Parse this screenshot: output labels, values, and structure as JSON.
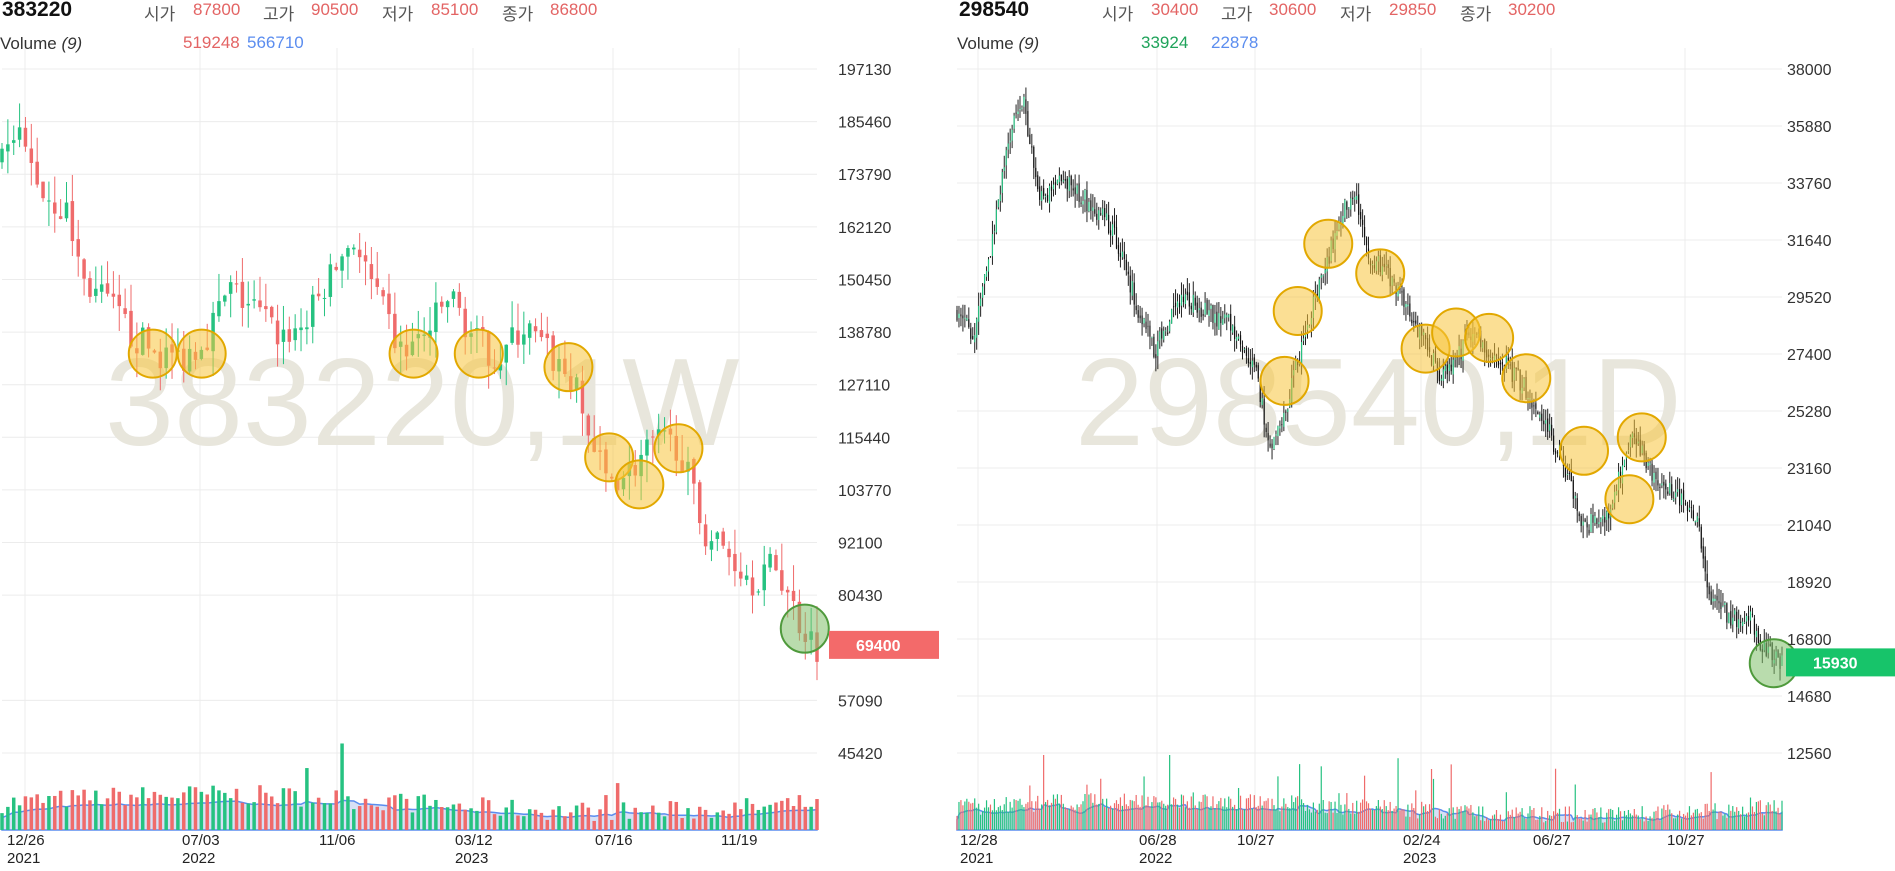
{
  "panels": [
    {
      "symbol": "383220",
      "ohlc": [
        {
          "key": "시가",
          "value": "87800"
        },
        {
          "key": "고가",
          "value": "90500"
        },
        {
          "key": "저가",
          "value": "85100"
        },
        {
          "key": "종가",
          "value": "86800"
        }
      ],
      "volume_label": "Volume",
      "volume_param": "(9)",
      "volume_values": [
        "519248",
        "566710"
      ],
      "last_price": "69400",
      "watermark": "383220,1W"
    },
    {
      "symbol": "298540",
      "ohlc": [
        {
          "key": "시가",
          "value": "30400"
        },
        {
          "key": "고가",
          "value": "30600"
        },
        {
          "key": "저가",
          "value": "29850"
        },
        {
          "key": "종가",
          "value": "30200"
        }
      ],
      "volume_label": "Volume",
      "volume_param": "(9)",
      "volume_values": [
        "33924",
        "22878"
      ],
      "last_price": "15930",
      "watermark": "298540,1D"
    }
  ],
  "colors": {
    "up": "#26c281",
    "down": "#ef6b6b",
    "ohlc_value": "#e36464",
    "vol_up_text": "#e36464",
    "vol_down_text": "#5b8def",
    "vol_up_text_right": "#1fa35a",
    "vol_ma_line": "#5b8def",
    "vol_ma_fill": "#c9d6f3",
    "highlight_yellow": "#f7c53c",
    "highlight_green": "#7fbf6a",
    "last_price_red": "#f36a6a",
    "last_price_green": "#17c46a",
    "grid": "#ececec"
  },
  "chart_data": [
    {
      "type": "candlestick",
      "interval": "1W",
      "symbol": "383220",
      "title": "383220",
      "y_ticks": [
        197130,
        185460,
        173790,
        162120,
        150450,
        138780,
        127110,
        115440,
        103770,
        92100,
        80430,
        57090,
        45420
      ],
      "ylim": [
        45420,
        197130
      ],
      "x_ticks": [
        {
          "label": "12/26",
          "year": "2021"
        },
        {
          "label": "07/03",
          "year": "2022"
        },
        {
          "label": "11/06",
          "year": ""
        },
        {
          "label": "03/12",
          "year": "2023"
        },
        {
          "label": "07/16",
          "year": ""
        },
        {
          "label": "11/19",
          "year": ""
        }
      ],
      "close_path": [
        {
          "x": 0.0,
          "y": 176000
        },
        {
          "x": 0.02,
          "y": 182000
        },
        {
          "x": 0.05,
          "y": 170000
        },
        {
          "x": 0.08,
          "y": 165000
        },
        {
          "x": 0.1,
          "y": 150000
        },
        {
          "x": 0.13,
          "y": 145000
        },
        {
          "x": 0.16,
          "y": 138000
        },
        {
          "x": 0.19,
          "y": 134000
        },
        {
          "x": 0.22,
          "y": 133000
        },
        {
          "x": 0.25,
          "y": 138000
        },
        {
          "x": 0.28,
          "y": 148000
        },
        {
          "x": 0.31,
          "y": 144000
        },
        {
          "x": 0.34,
          "y": 138000
        },
        {
          "x": 0.37,
          "y": 140000
        },
        {
          "x": 0.4,
          "y": 150000
        },
        {
          "x": 0.43,
          "y": 160000
        },
        {
          "x": 0.46,
          "y": 146000
        },
        {
          "x": 0.49,
          "y": 134000
        },
        {
          "x": 0.52,
          "y": 138000
        },
        {
          "x": 0.55,
          "y": 147000
        },
        {
          "x": 0.58,
          "y": 137000
        },
        {
          "x": 0.61,
          "y": 133000
        },
        {
          "x": 0.64,
          "y": 140000
        },
        {
          "x": 0.67,
          "y": 134000
        },
        {
          "x": 0.7,
          "y": 128000
        },
        {
          "x": 0.72,
          "y": 116000
        },
        {
          "x": 0.74,
          "y": 106000
        },
        {
          "x": 0.77,
          "y": 108000
        },
        {
          "x": 0.8,
          "y": 114000
        },
        {
          "x": 0.83,
          "y": 114000
        },
        {
          "x": 0.86,
          "y": 95000
        },
        {
          "x": 0.89,
          "y": 90000
        },
        {
          "x": 0.92,
          "y": 84000
        },
        {
          "x": 0.95,
          "y": 87000
        },
        {
          "x": 0.98,
          "y": 74000
        },
        {
          "x": 1.0,
          "y": 69400
        }
      ],
      "highlights": [
        {
          "x": 0.185,
          "y": 134000,
          "color": "yellow"
        },
        {
          "x": 0.245,
          "y": 134000,
          "color": "yellow"
        },
        {
          "x": 0.505,
          "y": 134000,
          "color": "yellow"
        },
        {
          "x": 0.585,
          "y": 134000,
          "color": "yellow"
        },
        {
          "x": 0.695,
          "y": 131000,
          "color": "yellow"
        },
        {
          "x": 0.745,
          "y": 111000,
          "color": "yellow"
        },
        {
          "x": 0.782,
          "y": 105000,
          "color": "yellow"
        },
        {
          "x": 0.83,
          "y": 113000,
          "color": "yellow"
        },
        {
          "x": 0.985,
          "y": 73000,
          "color": "green"
        }
      ]
    },
    {
      "type": "candlestick",
      "interval": "1D",
      "symbol": "298540",
      "title": "298540",
      "y_ticks": [
        38000,
        35880,
        33760,
        31640,
        29520,
        27400,
        25280,
        23160,
        21040,
        18920,
        16800,
        14680,
        12560
      ],
      "ylim": [
        12560,
        38000
      ],
      "x_ticks": [
        {
          "label": "12/28",
          "year": "2021"
        },
        {
          "label": "06/28",
          "year": "2022"
        },
        {
          "label": "10/27",
          "year": ""
        },
        {
          "label": "02/24",
          "year": "2023"
        },
        {
          "label": "06/27",
          "year": ""
        },
        {
          "label": "10/27",
          "year": ""
        }
      ],
      "close_path": [
        {
          "x": 0.0,
          "y": 29000
        },
        {
          "x": 0.02,
          "y": 28000
        },
        {
          "x": 0.04,
          "y": 31000
        },
        {
          "x": 0.06,
          "y": 35000
        },
        {
          "x": 0.08,
          "y": 37000
        },
        {
          "x": 0.1,
          "y": 33000
        },
        {
          "x": 0.13,
          "y": 34000
        },
        {
          "x": 0.16,
          "y": 33000
        },
        {
          "x": 0.19,
          "y": 32000
        },
        {
          "x": 0.22,
          "y": 29000
        },
        {
          "x": 0.24,
          "y": 27500
        },
        {
          "x": 0.27,
          "y": 29500
        },
        {
          "x": 0.3,
          "y": 29000
        },
        {
          "x": 0.33,
          "y": 28500
        },
        {
          "x": 0.36,
          "y": 27000
        },
        {
          "x": 0.38,
          "y": 24000
        },
        {
          "x": 0.4,
          "y": 25500
        },
        {
          "x": 0.42,
          "y": 28000
        },
        {
          "x": 0.44,
          "y": 30000
        },
        {
          "x": 0.46,
          "y": 32000
        },
        {
          "x": 0.48,
          "y": 33500
        },
        {
          "x": 0.5,
          "y": 31000
        },
        {
          "x": 0.52,
          "y": 30500
        },
        {
          "x": 0.55,
          "y": 29000
        },
        {
          "x": 0.57,
          "y": 27500
        },
        {
          "x": 0.59,
          "y": 26500
        },
        {
          "x": 0.62,
          "y": 28000
        },
        {
          "x": 0.65,
          "y": 27500
        },
        {
          "x": 0.68,
          "y": 26500
        },
        {
          "x": 0.71,
          "y": 25000
        },
        {
          "x": 0.74,
          "y": 23000
        },
        {
          "x": 0.76,
          "y": 21000
        },
        {
          "x": 0.79,
          "y": 21500
        },
        {
          "x": 0.82,
          "y": 24500
        },
        {
          "x": 0.85,
          "y": 22500
        },
        {
          "x": 0.88,
          "y": 22000
        },
        {
          "x": 0.9,
          "y": 21000
        },
        {
          "x": 0.91,
          "y": 18500
        },
        {
          "x": 0.94,
          "y": 17500
        },
        {
          "x": 0.96,
          "y": 17800
        },
        {
          "x": 0.98,
          "y": 16300
        },
        {
          "x": 1.0,
          "y": 15930
        }
      ],
      "highlights": [
        {
          "x": 0.397,
          "y": 26400,
          "color": "yellow"
        },
        {
          "x": 0.413,
          "y": 29000,
          "color": "yellow"
        },
        {
          "x": 0.45,
          "y": 31500,
          "color": "yellow"
        },
        {
          "x": 0.513,
          "y": 30400,
          "color": "yellow"
        },
        {
          "x": 0.568,
          "y": 27600,
          "color": "yellow"
        },
        {
          "x": 0.605,
          "y": 28200,
          "color": "yellow"
        },
        {
          "x": 0.645,
          "y": 28000,
          "color": "yellow"
        },
        {
          "x": 0.69,
          "y": 26500,
          "color": "yellow"
        },
        {
          "x": 0.76,
          "y": 23800,
          "color": "yellow"
        },
        {
          "x": 0.815,
          "y": 22000,
          "color": "yellow"
        },
        {
          "x": 0.83,
          "y": 24300,
          "color": "yellow"
        },
        {
          "x": 0.99,
          "y": 15900,
          "color": "green"
        }
      ]
    }
  ]
}
